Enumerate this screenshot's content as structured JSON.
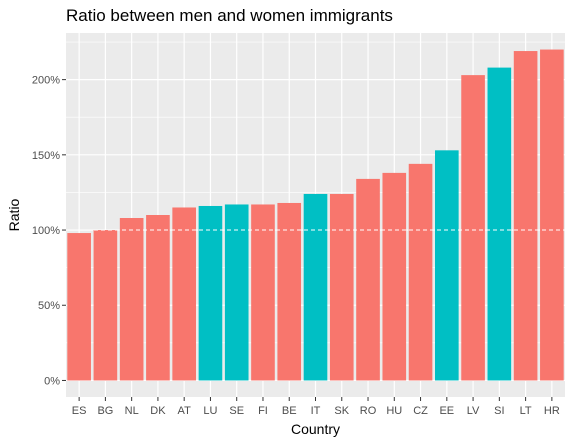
{
  "chart_data": {
    "type": "bar",
    "title": "Ratio between men and women immigrants",
    "xlabel": "Country",
    "ylabel": "Ratio",
    "categories": [
      "ES",
      "BG",
      "NL",
      "DK",
      "AT",
      "LU",
      "SE",
      "FI",
      "BE",
      "IT",
      "SK",
      "RO",
      "HU",
      "CZ",
      "EE",
      "LV",
      "SI",
      "LT",
      "HR"
    ],
    "values": [
      98,
      100,
      108,
      110,
      115,
      116,
      117,
      117,
      118,
      124,
      124,
      134,
      138,
      144,
      153,
      203,
      208,
      219,
      220
    ],
    "highlighted": [
      false,
      false,
      false,
      false,
      false,
      true,
      true,
      false,
      false,
      true,
      false,
      false,
      false,
      false,
      true,
      false,
      true,
      false,
      false
    ],
    "colors": {
      "default": "#F8766D",
      "highlight": "#00BFC4",
      "panel": "#EBEBEB",
      "grid": "#FFFFFF",
      "reference": "#FFFFFF"
    },
    "yticks": [
      0,
      50,
      100,
      150,
      200
    ],
    "ytick_labels": [
      "0%",
      "50%",
      "100%",
      "150%",
      "200%"
    ],
    "ylim": [
      -11,
      231
    ],
    "reference_line": 100,
    "legend": "none",
    "grid": true
  }
}
